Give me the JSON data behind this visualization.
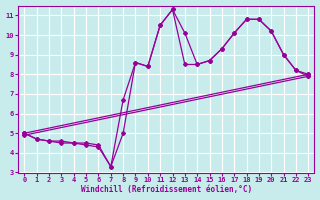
{
  "xlabel": "Windchill (Refroidissement éolien,°C)",
  "xlim": [
    -0.5,
    23.5
  ],
  "ylim": [
    3,
    11.5
  ],
  "yticks": [
    3,
    4,
    5,
    6,
    7,
    8,
    9,
    10,
    11
  ],
  "xticks": [
    0,
    1,
    2,
    3,
    4,
    5,
    6,
    7,
    8,
    9,
    10,
    11,
    12,
    13,
    14,
    15,
    16,
    17,
    18,
    19,
    20,
    21,
    22,
    23
  ],
  "bg_color": "#c8ecec",
  "line_color": "#990099",
  "grid_color": "#ffffff",
  "lines": [
    {
      "x": [
        0,
        1,
        2,
        3,
        4,
        5,
        6,
        7,
        8,
        9,
        10,
        11,
        12,
        13,
        14,
        15,
        16,
        17,
        18,
        19,
        20,
        21,
        22,
        23
      ],
      "y": [
        5.0,
        4.7,
        4.6,
        4.5,
        4.5,
        4.4,
        4.3,
        3.3,
        5.0,
        8.6,
        8.4,
        10.5,
        11.3,
        10.1,
        8.5,
        8.7,
        9.3,
        10.1,
        10.8,
        10.8,
        10.2,
        9.0,
        8.2,
        8.0
      ]
    },
    {
      "x": [
        0,
        1,
        2,
        3,
        4,
        5,
        6,
        7,
        8,
        9,
        10,
        11,
        12,
        13,
        14,
        15,
        16,
        17,
        18,
        19,
        20,
        21,
        22,
        23
      ],
      "y": [
        5.0,
        4.7,
        4.6,
        4.6,
        4.5,
        4.5,
        4.4,
        3.3,
        6.7,
        8.6,
        8.4,
        10.5,
        11.3,
        8.5,
        8.5,
        8.7,
        9.3,
        10.1,
        10.8,
        10.8,
        10.2,
        9.0,
        8.2,
        7.9
      ]
    },
    {
      "x": [
        0,
        23
      ],
      "y": [
        5.0,
        8.0
      ]
    },
    {
      "x": [
        0,
        23
      ],
      "y": [
        4.9,
        7.9
      ]
    }
  ]
}
